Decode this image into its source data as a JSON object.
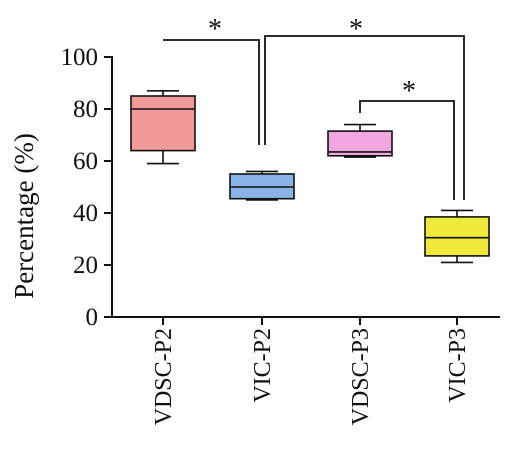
{
  "chart_data": {
    "type": "box",
    "ylabel": "Percentage (%)",
    "ylim": [
      0,
      100
    ],
    "yticks": [
      "0",
      "20",
      "40",
      "60",
      "80",
      "100"
    ],
    "categories": [
      "VDSC-P2",
      "VIC-P2",
      "VDSC-P3",
      "VIC-P3"
    ],
    "boxes": [
      {
        "category": "VDSC-P2",
        "min": 59,
        "q1": 64,
        "median": 80,
        "q3": 85,
        "max": 87,
        "color": "#f29a9a"
      },
      {
        "category": "VIC-P2",
        "min": 45,
        "q1": 45.5,
        "median": 50,
        "q3": 55,
        "max": 56,
        "color": "#8ab4e8"
      },
      {
        "category": "VDSC-P3",
        "min": 61.5,
        "q1": 62,
        "median": 63.5,
        "q3": 71.5,
        "max": 74,
        "color": "#f2a6e0"
      },
      {
        "category": "VIC-P3",
        "min": 21,
        "q1": 23.5,
        "median": 30.5,
        "q3": 38.5,
        "max": 41,
        "color": "#eeea3c"
      }
    ],
    "significance": [
      {
        "from": "VDSC-P2",
        "to": "VIC-P2",
        "label": "*"
      },
      {
        "from": "VIC-P2",
        "to": "VIC-P3",
        "label": "*"
      },
      {
        "from": "VDSC-P3",
        "to": "VIC-P3",
        "label": "*"
      }
    ]
  }
}
